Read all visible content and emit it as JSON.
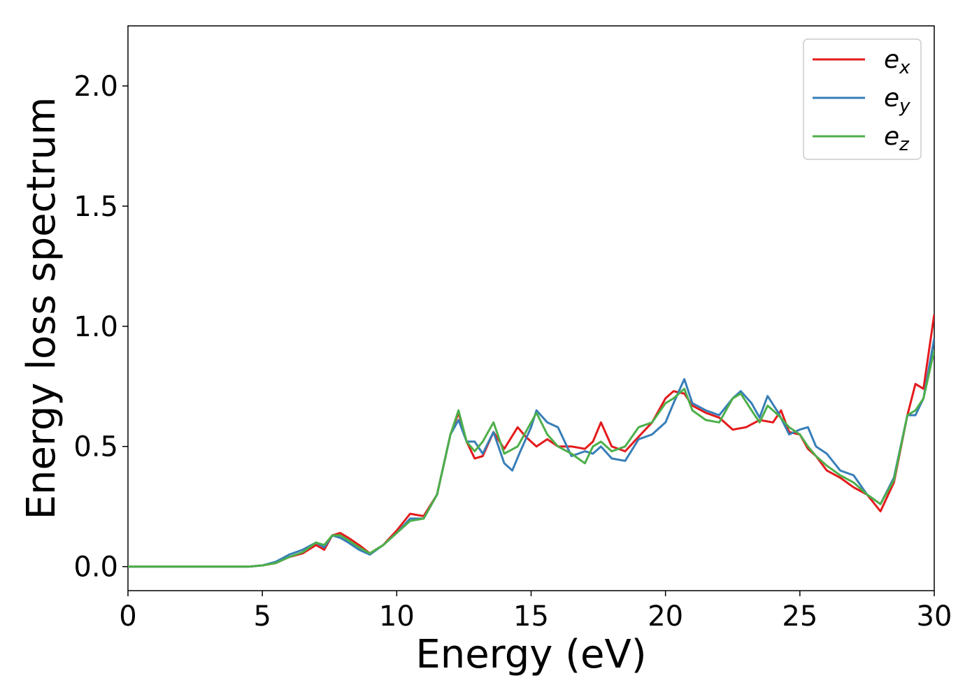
{
  "chart_data": {
    "type": "line",
    "title": "",
    "xlabel": "Energy (eV)",
    "ylabel": "Energy loss spectrum",
    "xlim": [
      0,
      30
    ],
    "ylim": [
      -0.1,
      2.25
    ],
    "xticks": [
      "0",
      "5",
      "10",
      "15",
      "20",
      "25",
      "30"
    ],
    "yticks": [
      "0.0",
      "0.5",
      "1.0",
      "1.5",
      "2.0"
    ],
    "grid": false,
    "legend_position": "top-right",
    "series": [
      {
        "name": "e_x",
        "label_main": "e",
        "label_sub": "x",
        "color": "#e41a1c",
        "x": [
          0,
          1,
          2,
          3,
          4,
          4.5,
          5,
          5.5,
          6,
          6.5,
          7,
          7.3,
          7.6,
          7.9,
          8.2,
          8.6,
          9,
          9.5,
          10,
          10.5,
          11,
          11.5,
          12,
          12.3,
          12.6,
          12.9,
          13.2,
          13.6,
          14,
          14.5,
          14.8,
          15.2,
          15.6,
          16,
          16.5,
          17,
          17.3,
          17.6,
          18,
          18.5,
          19,
          19.5,
          20,
          20.3,
          20.7,
          21,
          21.5,
          22,
          22.5,
          23,
          23.5,
          24,
          24.3,
          24.6,
          25,
          25.3,
          25.6,
          26,
          26.5,
          27,
          27.5,
          28,
          28.5,
          29,
          29.3,
          29.6,
          30
        ],
        "values": [
          0,
          0,
          0,
          0,
          0,
          0,
          0.005,
          0.015,
          0.04,
          0.055,
          0.09,
          0.07,
          0.13,
          0.14,
          0.12,
          0.09,
          0.055,
          0.09,
          0.15,
          0.22,
          0.21,
          0.3,
          0.55,
          0.64,
          0.52,
          0.45,
          0.46,
          0.56,
          0.49,
          0.58,
          0.54,
          0.5,
          0.53,
          0.5,
          0.5,
          0.49,
          0.52,
          0.6,
          0.5,
          0.48,
          0.54,
          0.6,
          0.7,
          0.73,
          0.72,
          0.67,
          0.64,
          0.62,
          0.57,
          0.58,
          0.61,
          0.6,
          0.65,
          0.56,
          0.55,
          0.49,
          0.46,
          0.4,
          0.37,
          0.33,
          0.3,
          0.23,
          0.35,
          0.63,
          0.76,
          0.74,
          1.05
        ]
      },
      {
        "name": "e_y",
        "label_main": "e",
        "label_sub": "y",
        "color": "#377eb8",
        "x": [
          0,
          1,
          2,
          3,
          4,
          4.5,
          5,
          5.5,
          6,
          6.5,
          7,
          7.3,
          7.6,
          7.9,
          8.2,
          8.6,
          9,
          9.5,
          10,
          10.5,
          11,
          11.5,
          12,
          12.3,
          12.6,
          12.9,
          13.2,
          13.6,
          14,
          14.3,
          14.6,
          15,
          15.2,
          15.6,
          16,
          16.5,
          17,
          17.3,
          17.6,
          18,
          18.5,
          19,
          19.5,
          20,
          20.3,
          20.7,
          21,
          21.5,
          22,
          22.5,
          22.8,
          23.2,
          23.5,
          23.8,
          24.2,
          24.6,
          25,
          25.3,
          25.6,
          26,
          26.5,
          27,
          27.5,
          28,
          28.5,
          29,
          29.3,
          29.6,
          30
        ],
        "values": [
          0,
          0,
          0,
          0,
          0,
          0,
          0.005,
          0.02,
          0.05,
          0.07,
          0.1,
          0.08,
          0.13,
          0.12,
          0.1,
          0.07,
          0.05,
          0.09,
          0.14,
          0.2,
          0.2,
          0.3,
          0.55,
          0.61,
          0.52,
          0.52,
          0.47,
          0.56,
          0.43,
          0.4,
          0.48,
          0.58,
          0.65,
          0.6,
          0.58,
          0.46,
          0.48,
          0.47,
          0.5,
          0.45,
          0.44,
          0.53,
          0.55,
          0.6,
          0.68,
          0.78,
          0.68,
          0.65,
          0.63,
          0.7,
          0.73,
          0.68,
          0.62,
          0.71,
          0.64,
          0.55,
          0.57,
          0.58,
          0.5,
          0.47,
          0.4,
          0.38,
          0.3,
          0.26,
          0.37,
          0.63,
          0.63,
          0.7,
          0.95
        ]
      },
      {
        "name": "e_z",
        "label_main": "e",
        "label_sub": "z",
        "color": "#4daf4a",
        "x": [
          0,
          1,
          2,
          3,
          4,
          4.5,
          5,
          5.5,
          6,
          6.5,
          7,
          7.3,
          7.6,
          7.9,
          8.2,
          8.6,
          9,
          9.5,
          10,
          10.5,
          11,
          11.5,
          12,
          12.3,
          12.6,
          12.9,
          13.2,
          13.6,
          14,
          14.5,
          15,
          15.2,
          15.6,
          16,
          16.5,
          17,
          17.3,
          17.6,
          18,
          18.5,
          19,
          19.5,
          20,
          20.3,
          20.7,
          21,
          21.5,
          22,
          22.5,
          22.8,
          23.2,
          23.5,
          23.8,
          24.2,
          24.6,
          25,
          25.3,
          25.6,
          26,
          26.5,
          27,
          27.5,
          28,
          28.5,
          29,
          29.3,
          29.6,
          30
        ],
        "values": [
          0,
          0,
          0,
          0,
          0,
          0,
          0.005,
          0.015,
          0.04,
          0.06,
          0.1,
          0.09,
          0.13,
          0.13,
          0.11,
          0.08,
          0.055,
          0.09,
          0.14,
          0.19,
          0.2,
          0.3,
          0.55,
          0.65,
          0.52,
          0.48,
          0.52,
          0.6,
          0.47,
          0.5,
          0.6,
          0.64,
          0.55,
          0.5,
          0.47,
          0.43,
          0.5,
          0.52,
          0.48,
          0.5,
          0.58,
          0.6,
          0.68,
          0.7,
          0.74,
          0.65,
          0.61,
          0.6,
          0.7,
          0.72,
          0.65,
          0.6,
          0.67,
          0.63,
          0.58,
          0.55,
          0.5,
          0.46,
          0.42,
          0.38,
          0.35,
          0.3,
          0.26,
          0.36,
          0.63,
          0.65,
          0.7,
          0.9
        ]
      }
    ]
  }
}
